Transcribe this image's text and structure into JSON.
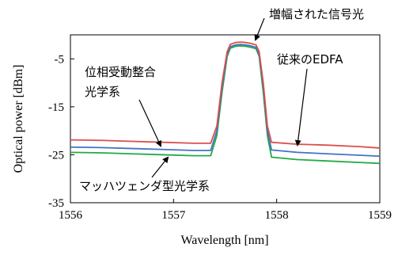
{
  "chart_data": {
    "type": "line",
    "title": "",
    "xlabel": "Wavelength [nm]",
    "ylabel": "Optical power [dBm]",
    "xlim": [
      1556,
      1559
    ],
    "ylim": [
      -35,
      0
    ],
    "xticks": [
      1556,
      1557,
      1558,
      1559
    ],
    "yticks": [
      -35,
      -25,
      -15,
      -5
    ],
    "grid": false,
    "series": [
      {
        "name": "従来のEDFA",
        "color": "#d9504a",
        "points": [
          [
            1556,
            -21.9
          ],
          [
            1556.3,
            -22.0
          ],
          [
            1556.6,
            -22.2
          ],
          [
            1556.9,
            -22.4
          ],
          [
            1557.2,
            -22.6
          ],
          [
            1557.36,
            -22.6
          ],
          [
            1557.42,
            -19.0
          ],
          [
            1557.47,
            -10.0
          ],
          [
            1557.52,
            -3.5
          ],
          [
            1557.55,
            -2.0
          ],
          [
            1557.6,
            -1.6
          ],
          [
            1557.65,
            -1.5
          ],
          [
            1557.7,
            -1.6
          ],
          [
            1557.75,
            -1.8
          ],
          [
            1557.8,
            -2.1
          ],
          [
            1557.83,
            -3.5
          ],
          [
            1557.87,
            -10.0
          ],
          [
            1557.91,
            -19.0
          ],
          [
            1557.95,
            -22.4
          ],
          [
            1558.2,
            -22.8
          ],
          [
            1558.5,
            -23.0
          ],
          [
            1558.8,
            -23.3
          ],
          [
            1559,
            -23.6
          ]
        ]
      },
      {
        "name": "位相受動整合光学系",
        "color": "#4472c4",
        "points": [
          [
            1556,
            -23.4
          ],
          [
            1556.3,
            -23.5
          ],
          [
            1556.6,
            -23.7
          ],
          [
            1556.9,
            -23.9
          ],
          [
            1557.2,
            -24.1
          ],
          [
            1557.36,
            -24.1
          ],
          [
            1557.42,
            -20.0
          ],
          [
            1557.47,
            -11.0
          ],
          [
            1557.52,
            -4.0
          ],
          [
            1557.55,
            -2.5
          ],
          [
            1557.6,
            -2.1
          ],
          [
            1557.65,
            -2.0
          ],
          [
            1557.7,
            -2.1
          ],
          [
            1557.75,
            -2.3
          ],
          [
            1557.8,
            -2.6
          ],
          [
            1557.83,
            -4.0
          ],
          [
            1557.87,
            -11.0
          ],
          [
            1557.91,
            -20.0
          ],
          [
            1557.95,
            -24.0
          ],
          [
            1558.2,
            -24.5
          ],
          [
            1558.5,
            -24.8
          ],
          [
            1558.8,
            -25.1
          ],
          [
            1559,
            -25.3
          ]
        ]
      },
      {
        "name": "マッハツェンダ型光学系",
        "color": "#22aa44",
        "points": [
          [
            1556,
            -24.5
          ],
          [
            1556.3,
            -24.6
          ],
          [
            1556.6,
            -24.8
          ],
          [
            1556.9,
            -25.0
          ],
          [
            1557.2,
            -25.2
          ],
          [
            1557.36,
            -25.2
          ],
          [
            1557.42,
            -21.0
          ],
          [
            1557.47,
            -12.0
          ],
          [
            1557.52,
            -4.5
          ],
          [
            1557.55,
            -2.8
          ],
          [
            1557.6,
            -2.4
          ],
          [
            1557.65,
            -2.3
          ],
          [
            1557.7,
            -2.4
          ],
          [
            1557.75,
            -2.6
          ],
          [
            1557.8,
            -2.9
          ],
          [
            1557.83,
            -4.5
          ],
          [
            1557.87,
            -12.0
          ],
          [
            1557.91,
            -21.0
          ],
          [
            1557.95,
            -25.5
          ],
          [
            1558.2,
            -26.0
          ],
          [
            1558.5,
            -26.3
          ],
          [
            1558.8,
            -26.6
          ],
          [
            1559,
            -26.8
          ]
        ]
      }
    ],
    "annotations": [
      {
        "text": "増幅された信号光"
      },
      {
        "text": "従来のEDFA"
      },
      {
        "text": "位相受動整合"
      },
      {
        "text": "光学系"
      },
      {
        "text": "マッハツェンダ型光学系"
      }
    ]
  }
}
